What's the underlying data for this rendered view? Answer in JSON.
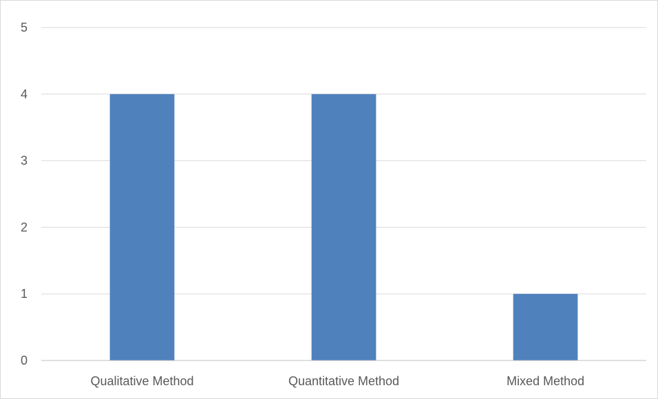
{
  "chart_data": {
    "type": "bar",
    "title": "",
    "xlabel": "",
    "ylabel": "",
    "categories": [
      "Qualitative Method",
      "Quantitative Method",
      "Mixed Method"
    ],
    "values": [
      4,
      4,
      1
    ],
    "ylim": [
      0,
      5
    ],
    "yticks": [
      0,
      1,
      2,
      3,
      4,
      5
    ],
    "grid": true,
    "legend": "none",
    "bar_color": "#4F81BD",
    "grid_color": "#D9D9D9",
    "axis_color": "#BFBFBF",
    "tick_label_color": "#595959"
  }
}
